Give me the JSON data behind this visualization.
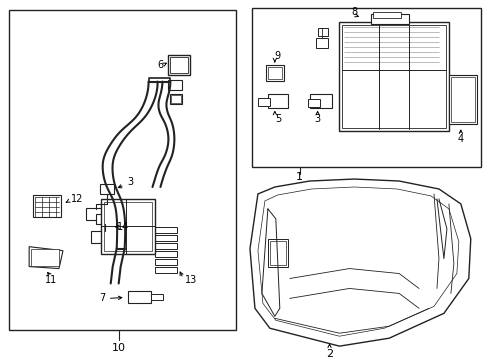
{
  "bg_color": "#ffffff",
  "line_color": "#222222",
  "fig_width": 4.89,
  "fig_height": 3.6,
  "dpi": 100
}
